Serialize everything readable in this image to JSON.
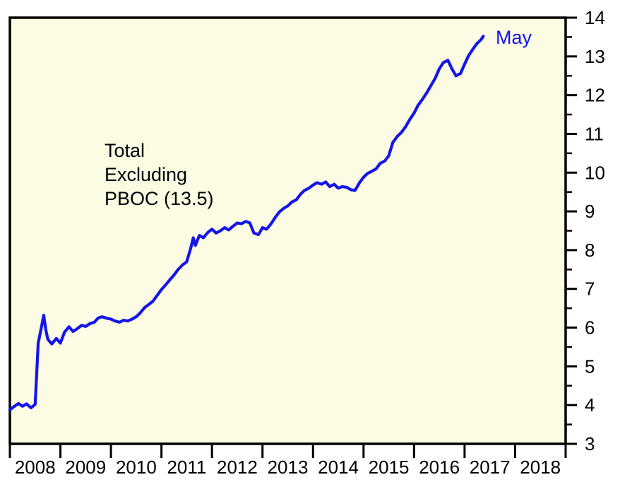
{
  "chart_data": {
    "type": "line",
    "title": "",
    "annotation_lines": [
      "Total",
      "Excluding",
      "PBOC (13.5)"
    ],
    "end_label": "May",
    "latest_value": 13.5,
    "x_axis": {
      "year_labels": [
        "2008",
        "2009",
        "2010",
        "2011",
        "2012",
        "2013",
        "2014",
        "2015",
        "2016",
        "2017",
        "2018"
      ],
      "range": [
        2008,
        2019
      ],
      "grid": false
    },
    "y_axis": {
      "tick_labels": [
        "3",
        "4",
        "5",
        "6",
        "7",
        "8",
        "9",
        "10",
        "11",
        "12",
        "13",
        "14"
      ],
      "range": [
        3,
        14
      ],
      "minor_tick_step": 0.5,
      "side": "right",
      "grid": false
    },
    "legend": "inline-annotation",
    "series": [
      {
        "name": "Total Excluding PBOC",
        "x": [
          2008.0,
          2008.08,
          2008.17,
          2008.25,
          2008.33,
          2008.42,
          2008.5,
          2008.56,
          2008.63,
          2008.67,
          2008.71,
          2008.75,
          2008.83,
          2008.92,
          2009.0,
          2009.08,
          2009.17,
          2009.25,
          2009.33,
          2009.42,
          2009.5,
          2009.58,
          2009.67,
          2009.75,
          2009.83,
          2009.92,
          2010.0,
          2010.08,
          2010.17,
          2010.25,
          2010.33,
          2010.42,
          2010.5,
          2010.58,
          2010.67,
          2010.75,
          2010.83,
          2010.92,
          2011.0,
          2011.08,
          2011.17,
          2011.25,
          2011.33,
          2011.42,
          2011.5,
          2011.58,
          2011.63,
          2011.67,
          2011.75,
          2011.83,
          2011.92,
          2012.0,
          2012.08,
          2012.17,
          2012.25,
          2012.33,
          2012.42,
          2012.5,
          2012.58,
          2012.67,
          2012.75,
          2012.83,
          2012.92,
          2013.0,
          2013.08,
          2013.17,
          2013.25,
          2013.33,
          2013.42,
          2013.5,
          2013.58,
          2013.67,
          2013.75,
          2013.83,
          2013.92,
          2014.0,
          2014.08,
          2014.17,
          2014.25,
          2014.33,
          2014.42,
          2014.5,
          2014.58,
          2014.67,
          2014.75,
          2014.83,
          2014.92,
          2015.0,
          2015.08,
          2015.17,
          2015.25,
          2015.33,
          2015.42,
          2015.5,
          2015.58,
          2015.67,
          2015.75,
          2015.83,
          2015.92,
          2016.0,
          2016.08,
          2016.17,
          2016.25,
          2016.33,
          2016.42,
          2016.5,
          2016.58,
          2016.67,
          2016.75,
          2016.83,
          2016.92,
          2017.0,
          2017.08,
          2017.17,
          2017.25,
          2017.33,
          2017.37
        ],
        "y": [
          3.88,
          3.96,
          4.04,
          3.97,
          4.03,
          3.93,
          4.02,
          5.6,
          6.05,
          6.32,
          5.95,
          5.7,
          5.58,
          5.72,
          5.6,
          5.88,
          6.02,
          5.9,
          5.97,
          6.06,
          6.03,
          6.1,
          6.14,
          6.25,
          6.28,
          6.24,
          6.22,
          6.17,
          6.14,
          6.19,
          6.17,
          6.22,
          6.28,
          6.38,
          6.52,
          6.6,
          6.68,
          6.84,
          6.98,
          7.1,
          7.24,
          7.36,
          7.5,
          7.62,
          7.7,
          8.05,
          8.32,
          8.12,
          8.38,
          8.32,
          8.46,
          8.54,
          8.44,
          8.5,
          8.58,
          8.52,
          8.62,
          8.7,
          8.68,
          8.74,
          8.7,
          8.44,
          8.4,
          8.58,
          8.54,
          8.68,
          8.84,
          8.98,
          9.08,
          9.14,
          9.24,
          9.3,
          9.44,
          9.54,
          9.6,
          9.68,
          9.74,
          9.7,
          9.76,
          9.64,
          9.7,
          9.6,
          9.64,
          9.62,
          9.56,
          9.54,
          9.74,
          9.88,
          9.98,
          10.04,
          10.1,
          10.24,
          10.3,
          10.44,
          10.78,
          10.94,
          11.04,
          11.18,
          11.38,
          11.54,
          11.74,
          11.9,
          12.06,
          12.24,
          12.44,
          12.68,
          12.84,
          12.9,
          12.68,
          12.5,
          12.56,
          12.8,
          13.02,
          13.2,
          13.34,
          13.44,
          13.52
        ]
      }
    ],
    "colors": {
      "line": "#1515E8",
      "plot_background": "#FCFBE4",
      "axis": "#000000",
      "end_label": "#1515E8",
      "annotation": "#000000"
    }
  }
}
